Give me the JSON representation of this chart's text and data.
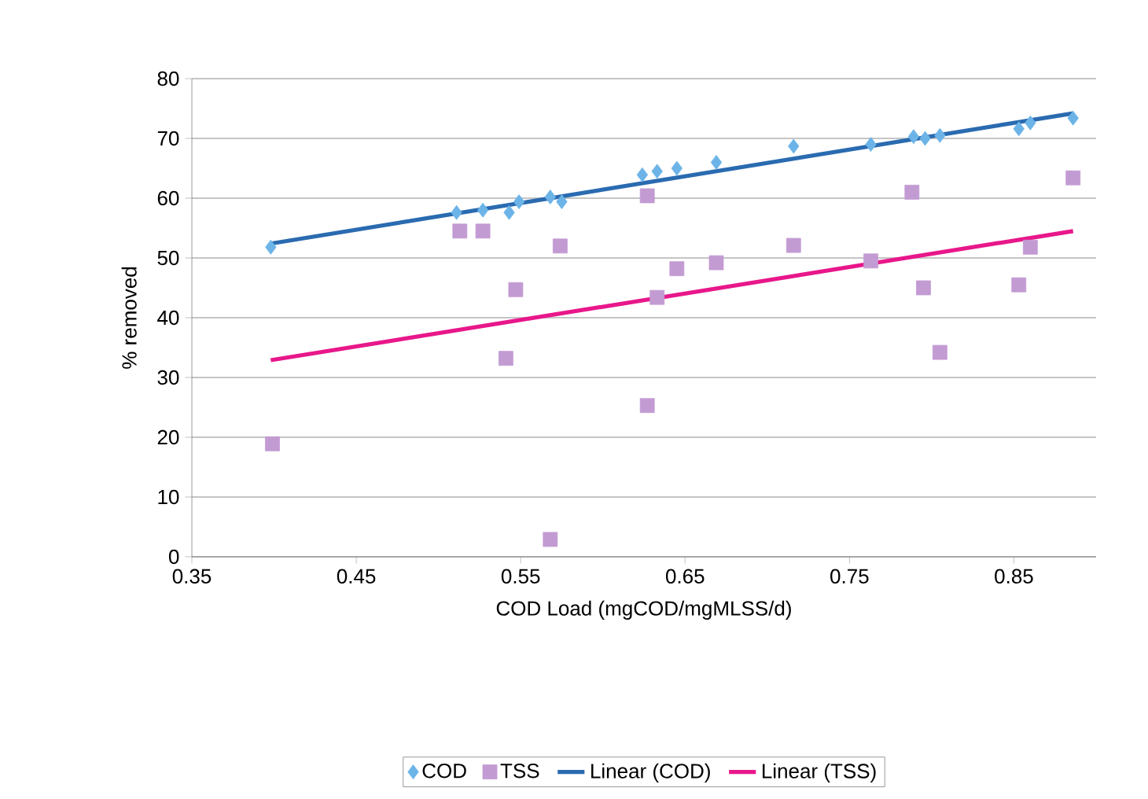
{
  "chart_data": {
    "type": "scatter",
    "xlabel": "COD Load (mgCOD/mgMLSS/d)",
    "ylabel": "% removed",
    "xlim": [
      0.35,
      0.9
    ],
    "xticks": [
      0.35,
      0.45,
      0.55,
      0.65,
      0.75,
      0.85
    ],
    "ylim": [
      0,
      80
    ],
    "yticks": [
      0,
      10,
      20,
      30,
      40,
      50,
      60,
      70,
      80
    ],
    "grid": "y",
    "legend": "bottom",
    "series": [
      {
        "name": "COD",
        "marker": "diamond",
        "color": "#6cb4e8",
        "x": [
          0.398,
          0.511,
          0.527,
          0.543,
          0.549,
          0.568,
          0.575,
          0.624,
          0.633,
          0.645,
          0.669,
          0.716,
          0.763,
          0.789,
          0.796,
          0.805,
          0.853,
          0.86,
          0.886
        ],
        "values": [
          51.8,
          57.6,
          58,
          57.6,
          59.4,
          60.2,
          59.4,
          63.9,
          64.5,
          65,
          66,
          68.7,
          69,
          70.3,
          70,
          70.5,
          71.6,
          72.6,
          73.4
        ]
      },
      {
        "name": "TSS",
        "marker": "square",
        "color": "#c39bd3",
        "x": [
          0.399,
          0.513,
          0.527,
          0.541,
          0.547,
          0.568,
          0.574,
          0.627,
          0.627,
          0.633,
          0.645,
          0.669,
          0.716,
          0.763,
          0.788,
          0.795,
          0.805,
          0.853,
          0.86,
          0.886
        ],
        "values": [
          18.9,
          54.5,
          54.5,
          33.2,
          44.7,
          2.9,
          52,
          60.4,
          25.3,
          43.4,
          48.2,
          49.2,
          52.1,
          49.5,
          61,
          45,
          34.2,
          45.5,
          51.8,
          63.4
        ]
      },
      {
        "name": "Linear (COD)",
        "type": "line",
        "marker": "none",
        "line_style": "solid",
        "color": "#2a6bb0",
        "x": [
          0.398,
          0.886
        ],
        "values": [
          52.4,
          74.2
        ]
      },
      {
        "name": "Linear (TSS)",
        "type": "line",
        "marker": "none",
        "line_style": "solid",
        "color": "#e8178a",
        "x": [
          0.398,
          0.886
        ],
        "values": [
          32.9,
          54.5
        ]
      }
    ]
  }
}
